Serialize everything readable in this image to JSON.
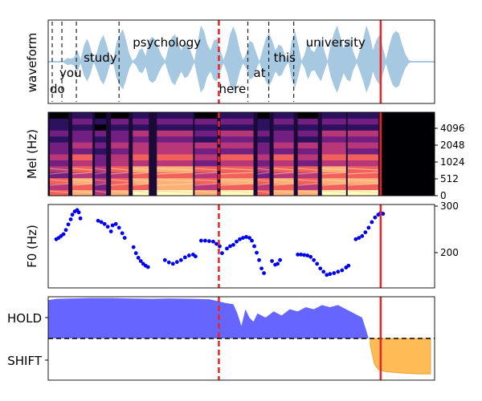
{
  "figure": {
    "background": "#ffffff"
  },
  "chart_data": [
    {
      "id": "waveform",
      "type": "area",
      "ylabel": "waveform",
      "xlim": [
        0,
        4.8
      ],
      "fill_color": "#a6c8e0",
      "envelope": [
        0.01,
        0.01,
        0.01,
        0.01,
        0.01,
        0.04,
        0.1,
        0.08,
        0.12,
        0.3,
        0.05,
        0.42,
        0.6,
        0.38,
        0.02,
        0.25,
        0.55,
        0.7,
        0.45,
        0.1,
        0.02,
        0.48,
        0.72,
        0.85,
        0.55,
        0.2,
        0.02,
        0.1,
        0.3,
        0.35,
        0.15,
        0.55,
        0.65,
        0.58,
        0.35,
        0.15,
        0.03,
        0.35,
        0.62,
        0.72,
        0.5,
        0.3,
        0.5,
        0.45,
        0.25,
        0.02,
        0.5,
        0.95,
        0.8,
        0.45,
        0.3,
        0.55,
        0.6,
        0.3,
        0.05,
        0.3,
        0.72,
        0.92,
        0.7,
        0.3,
        0.05,
        0.2,
        0.55,
        0.5,
        0.25,
        0.01,
        0.3,
        0.6,
        0.75,
        0.55,
        0.3,
        0.45,
        0.4,
        0.15,
        0.02,
        0.55,
        0.8,
        0.45,
        0.02,
        0.2,
        0.55,
        0.3,
        0.25,
        0.45,
        0.6,
        0.3,
        0.02,
        0.45,
        0.75,
        0.95,
        0.65,
        0.35,
        0.55,
        0.6,
        0.25,
        0.04,
        0.3,
        0.6,
        0.95,
        0.7,
        0.3,
        0.55,
        0.7,
        0.4,
        0.05,
        0.4,
        0.7,
        0.8,
        0.75,
        0.45,
        0.2,
        0.05,
        0.01,
        0.01,
        0.01,
        0.01,
        0.01,
        0.01,
        0.01,
        0.01
      ],
      "words": [
        {
          "text": "do",
          "t": 0.02,
          "row": "low"
        },
        {
          "text": "you",
          "t": 0.14,
          "row": "mid"
        },
        {
          "text": "study",
          "t": 0.44,
          "row": "upper"
        },
        {
          "text": "psychology",
          "t": 1.05,
          "row": "top"
        },
        {
          "text": "here",
          "t": 2.12,
          "row": "low"
        },
        {
          "text": "at",
          "t": 2.55,
          "row": "mid"
        },
        {
          "text": "this",
          "t": 2.8,
          "row": "upper"
        },
        {
          "text": "university",
          "t": 3.2,
          "row": "top"
        }
      ],
      "word_boundaries": [
        0.05,
        0.17,
        0.35,
        0.88,
        2.48,
        2.74,
        3.05
      ],
      "boundary_style": "black dashed",
      "markers": [
        {
          "t": 2.12,
          "style": "dashed",
          "color": "#ee2222"
        },
        {
          "t": 4.13,
          "style": "solid",
          "color": "#ee2222"
        }
      ]
    },
    {
      "id": "mel",
      "type": "heatmap",
      "ylabel": "Mel (Hz)",
      "xlim": [
        0,
        4.8
      ],
      "yticks": [
        "0",
        "512",
        "1024",
        "2048",
        "4096"
      ],
      "colormap": "magma",
      "voiced_until": 4.13,
      "segments": [
        [
          0.02,
          0.25,
          0.6
        ],
        [
          0.3,
          0.55,
          0.8
        ],
        [
          0.58,
          0.72,
          0.5
        ],
        [
          0.78,
          1.0,
          0.75
        ],
        [
          1.05,
          1.25,
          0.9
        ],
        [
          1.35,
          1.8,
          0.95
        ],
        [
          1.82,
          2.1,
          0.7
        ],
        [
          2.14,
          2.55,
          0.85
        ],
        [
          2.6,
          2.75,
          0.6
        ],
        [
          2.8,
          3.05,
          0.8
        ],
        [
          3.1,
          3.35,
          0.7
        ],
        [
          3.4,
          3.7,
          0.9
        ],
        [
          3.72,
          4.1,
          0.85
        ]
      ],
      "markers": [
        {
          "t": 2.12,
          "style": "dashed",
          "color": "#ee2222"
        },
        {
          "t": 4.13,
          "style": "solid",
          "color": "#ee2222"
        }
      ]
    },
    {
      "id": "f0",
      "type": "scatter",
      "ylabel": "F0 (Hz)",
      "xlim": [
        0,
        4.8
      ],
      "ylim": [
        120,
        300
      ],
      "yticks": [
        200,
        300
      ],
      "point_color": "#0000ee",
      "points": [
        [
          0.1,
          225
        ],
        [
          0.13,
          228
        ],
        [
          0.16,
          232
        ],
        [
          0.19,
          236
        ],
        [
          0.22,
          245
        ],
        [
          0.25,
          257
        ],
        [
          0.28,
          268
        ],
        [
          0.3,
          278
        ],
        [
          0.33,
          285
        ],
        [
          0.36,
          288
        ],
        [
          0.38,
          283
        ],
        [
          0.4,
          270
        ],
        [
          0.62,
          265
        ],
        [
          0.66,
          262
        ],
        [
          0.7,
          258
        ],
        [
          0.74,
          252
        ],
        [
          0.78,
          242
        ],
        [
          0.8,
          255
        ],
        [
          0.84,
          258
        ],
        [
          0.88,
          250
        ],
        [
          0.92,
          238
        ],
        [
          0.95,
          228
        ],
        [
          1.06,
          208
        ],
        [
          1.09,
          195
        ],
        [
          1.12,
          185
        ],
        [
          1.15,
          178
        ],
        [
          1.18,
          172
        ],
        [
          1.21,
          168
        ],
        [
          1.24,
          165
        ],
        [
          1.45,
          180
        ],
        [
          1.5,
          175
        ],
        [
          1.55,
          172
        ],
        [
          1.6,
          176
        ],
        [
          1.65,
          180
        ],
        [
          1.7,
          186
        ],
        [
          1.75,
          190
        ],
        [
          1.8,
          192
        ],
        [
          1.83,
          188
        ],
        [
          1.9,
          222
        ],
        [
          1.95,
          222
        ],
        [
          2.0,
          221
        ],
        [
          2.05,
          220
        ],
        [
          2.09,
          215
        ],
        [
          2.13,
          210
        ],
        [
          2.16,
          195
        ],
        [
          2.22,
          205
        ],
        [
          2.26,
          210
        ],
        [
          2.3,
          213
        ],
        [
          2.34,
          220
        ],
        [
          2.38,
          225
        ],
        [
          2.42,
          228
        ],
        [
          2.46,
          230
        ],
        [
          2.5,
          228
        ],
        [
          2.53,
          222
        ],
        [
          2.56,
          210
        ],
        [
          2.59,
          196
        ],
        [
          2.62,
          180
        ],
        [
          2.65,
          162
        ],
        [
          2.68,
          152
        ],
        [
          2.78,
          178
        ],
        [
          2.82,
          170
        ],
        [
          2.85,
          172
        ],
        [
          2.88,
          180
        ],
        [
          3.1,
          192
        ],
        [
          3.14,
          192
        ],
        [
          3.18,
          191
        ],
        [
          3.22,
          190
        ],
        [
          3.26,
          187
        ],
        [
          3.3,
          180
        ],
        [
          3.34,
          172
        ],
        [
          3.38,
          162
        ],
        [
          3.42,
          155
        ],
        [
          3.46,
          148
        ],
        [
          3.5,
          150
        ],
        [
          3.55,
          152
        ],
        [
          3.6,
          155
        ],
        [
          3.65,
          158
        ],
        [
          3.7,
          164
        ],
        [
          3.73,
          168
        ],
        [
          3.82,
          225
        ],
        [
          3.86,
          228
        ],
        [
          3.9,
          232
        ],
        [
          3.94,
          240
        ],
        [
          3.98,
          250
        ],
        [
          4.02,
          262
        ],
        [
          4.06,
          272
        ],
        [
          4.1,
          278
        ],
        [
          4.13,
          282
        ],
        [
          4.16,
          280
        ]
      ],
      "markers": [
        {
          "t": 2.12,
          "style": "dashed",
          "color": "#ee2222"
        },
        {
          "t": 4.13,
          "style": "solid",
          "color": "#ee2222"
        }
      ]
    },
    {
      "id": "turn",
      "type": "area",
      "yticks": [
        "HOLD",
        "SHIFT"
      ],
      "xlim": [
        0,
        4.8
      ],
      "ylim": [
        -1,
        1
      ],
      "threshold": 0,
      "hold_color": "#6666ff",
      "shift_color": "#ffbb55",
      "hold_series": [
        [
          0.0,
          0.92
        ],
        [
          0.1,
          0.95
        ],
        [
          0.3,
          0.96
        ],
        [
          0.5,
          0.97
        ],
        [
          0.8,
          0.97
        ],
        [
          1.0,
          0.96
        ],
        [
          1.3,
          0.95
        ],
        [
          1.5,
          0.96
        ],
        [
          1.8,
          0.95
        ],
        [
          2.0,
          0.94
        ],
        [
          2.1,
          0.9
        ],
        [
          2.2,
          0.85
        ],
        [
          2.3,
          0.82
        ],
        [
          2.35,
          0.6
        ],
        [
          2.4,
          0.3
        ],
        [
          2.45,
          0.7
        ],
        [
          2.5,
          0.5
        ],
        [
          2.55,
          0.4
        ],
        [
          2.6,
          0.6
        ],
        [
          2.7,
          0.5
        ],
        [
          2.8,
          0.65
        ],
        [
          2.9,
          0.55
        ],
        [
          3.0,
          0.7
        ],
        [
          3.1,
          0.65
        ],
        [
          3.2,
          0.75
        ],
        [
          3.3,
          0.7
        ],
        [
          3.4,
          0.8
        ],
        [
          3.5,
          0.75
        ],
        [
          3.6,
          0.8
        ],
        [
          3.7,
          0.7
        ],
        [
          3.8,
          0.6
        ],
        [
          3.9,
          0.5
        ],
        [
          3.95,
          0.2
        ],
        [
          3.98,
          0.0
        ]
      ],
      "shift_series": [
        [
          4.0,
          -0.15
        ],
        [
          4.05,
          -0.6
        ],
        [
          4.1,
          -0.75
        ],
        [
          4.2,
          -0.8
        ],
        [
          4.4,
          -0.83
        ],
        [
          4.6,
          -0.85
        ],
        [
          4.75,
          -0.85
        ]
      ],
      "markers": [
        {
          "t": 2.12,
          "style": "dashed",
          "color": "#ee2222"
        },
        {
          "t": 4.13,
          "style": "solid",
          "color": "#ee2222"
        }
      ]
    }
  ]
}
